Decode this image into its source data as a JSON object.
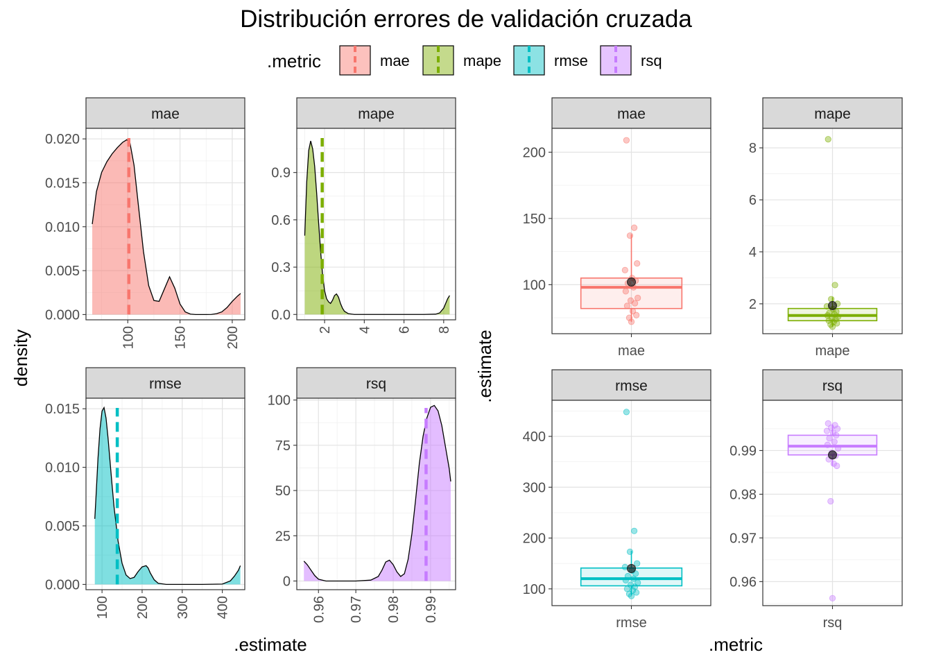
{
  "chart_data": {
    "title": "Distribución errores de validación cruzada",
    "legend": {
      "title": ".metric",
      "position": "top",
      "entries": [
        {
          "label": "mae",
          "color": "#F8766D"
        },
        {
          "label": "mape",
          "color": "#7CAE00"
        },
        {
          "label": "rmse",
          "color": "#00BFC4"
        },
        {
          "label": "rsq",
          "color": "#C77CFF"
        }
      ]
    },
    "colors": {
      "mae": "#F8766D",
      "mape": "#7CAE00",
      "rmse": "#00BFC4",
      "rsq": "#C77CFF"
    },
    "density_panels": {
      "type": "area",
      "xlabel": ".estimate",
      "ylabel": "density",
      "grid": true,
      "panels": [
        {
          "metric": "mae",
          "xlim": [
            60,
            212
          ],
          "ylim": [
            -0.0006,
            0.0212
          ],
          "xticks": [
            100,
            150,
            200
          ],
          "xtick_labels": [
            "100",
            "150",
            "200"
          ],
          "yticks": [
            0,
            0.005,
            0.01,
            0.015,
            0.02
          ],
          "ytick_labels": [
            "0.000",
            "0.005",
            "0.010",
            "0.015",
            "0.020"
          ],
          "mean": 101,
          "x": [
            66,
            70,
            75,
            80,
            85,
            90,
            95,
            99,
            102,
            106,
            110,
            115,
            120,
            125,
            130,
            135,
            140,
            145,
            150,
            155,
            160,
            165,
            170,
            175,
            180,
            185,
            190,
            195,
            200,
            205,
            208
          ],
          "y": [
            0.0103,
            0.014,
            0.0162,
            0.0174,
            0.0183,
            0.019,
            0.0196,
            0.0199,
            0.0196,
            0.017,
            0.0126,
            0.0072,
            0.0033,
            0.0016,
            0.0015,
            0.0029,
            0.0043,
            0.003,
            0.0012,
            0.0003,
            5e-05,
            0.0,
            0.0,
            0.0,
            1e-05,
            0.0001,
            0.0003,
            0.0008,
            0.0015,
            0.0021,
            0.0024
          ]
        },
        {
          "metric": "mape",
          "xlim": [
            0.6,
            8.6
          ],
          "ylim": [
            -0.034,
            1.18
          ],
          "xticks": [
            2,
            4,
            6,
            8
          ],
          "xtick_labels": [
            "2",
            "4",
            "6",
            "8"
          ],
          "yticks": [
            0,
            0.3,
            0.6,
            0.9
          ],
          "ytick_labels": [
            "0.0",
            "0.3",
            "0.6",
            "0.9"
          ],
          "mean": 1.88,
          "x": [
            1.0,
            1.1,
            1.2,
            1.3,
            1.4,
            1.5,
            1.6,
            1.7,
            1.8,
            1.9,
            2.0,
            2.1,
            2.2,
            2.3,
            2.4,
            2.5,
            2.6,
            2.7,
            2.8,
            2.9,
            3.0,
            3.2,
            3.5,
            4.0,
            5.0,
            6.0,
            7.0,
            7.6,
            7.8,
            8.0,
            8.1,
            8.2,
            8.3
          ],
          "y": [
            0.5,
            0.84,
            1.04,
            1.1,
            1.05,
            0.94,
            0.77,
            0.58,
            0.4,
            0.25,
            0.15,
            0.1,
            0.08,
            0.07,
            0.09,
            0.12,
            0.13,
            0.11,
            0.07,
            0.04,
            0.02,
            0.005,
            0.0,
            0.0,
            0.0,
            0.0,
            0.0,
            0.002,
            0.01,
            0.04,
            0.07,
            0.1,
            0.12
          ]
        },
        {
          "metric": "rmse",
          "xlim": [
            60,
            456
          ],
          "ylim": [
            -0.00045,
            0.0159
          ],
          "xticks": [
            100,
            200,
            300,
            400
          ],
          "xtick_labels": [
            "100",
            "200",
            "300",
            "400"
          ],
          "yticks": [
            0,
            0.005,
            0.01,
            0.015
          ],
          "ytick_labels": [
            "0.000",
            "0.005",
            "0.010",
            "0.015"
          ],
          "mean": 138,
          "x": [
            82,
            85,
            90,
            95,
            100,
            105,
            110,
            115,
            120,
            125,
            130,
            140,
            150,
            160,
            170,
            180,
            190,
            200,
            210,
            215,
            220,
            230,
            240,
            260,
            300,
            350,
            400,
            420,
            430,
            440,
            445
          ],
          "y": [
            0.0056,
            0.0075,
            0.0108,
            0.0133,
            0.0148,
            0.0151,
            0.0142,
            0.0125,
            0.0105,
            0.0085,
            0.0066,
            0.0037,
            0.0018,
            0.0008,
            0.0005,
            0.0006,
            0.0011,
            0.0015,
            0.0016,
            0.0014,
            0.001,
            0.0004,
            0.0001,
            0.0,
            0.0,
            0.0,
            3e-05,
            0.0003,
            0.0007,
            0.0012,
            0.0016
          ]
        },
        {
          "metric": "rsq",
          "xlim": [
            0.9542,
            0.9967
          ],
          "ylim": [
            -4.8,
            101
          ],
          "xticks": [
            0.96,
            0.97,
            0.98,
            0.99
          ],
          "xtick_labels": [
            "0.96",
            "0.97",
            "0.98",
            "0.99"
          ],
          "yticks": [
            0,
            25,
            50,
            75,
            100
          ],
          "ytick_labels": [
            "0",
            "25",
            "50",
            "75",
            "100"
          ],
          "mean": 0.9888,
          "x": [
            0.9561,
            0.957,
            0.958,
            0.959,
            0.96,
            0.962,
            0.965,
            0.97,
            0.974,
            0.976,
            0.977,
            0.978,
            0.979,
            0.98,
            0.981,
            0.982,
            0.983,
            0.984,
            0.985,
            0.986,
            0.987,
            0.988,
            0.989,
            0.99,
            0.991,
            0.992,
            0.993,
            0.994,
            0.995,
            0.9954
          ],
          "y": [
            11,
            9,
            6,
            3,
            1,
            0,
            0,
            0,
            0.5,
            2.5,
            6,
            10.5,
            11.5,
            9,
            5,
            2.5,
            4,
            12,
            26,
            45,
            65,
            80,
            90,
            96,
            97,
            94,
            86,
            74,
            62,
            55
          ]
        }
      ]
    },
    "box_panels": {
      "type": "box",
      "xlabel": ".metric",
      "ylabel": ".estimate",
      "grid": true,
      "panels": [
        {
          "metric": "mae",
          "ylim": [
            63,
            218
          ],
          "yticks": [
            100,
            150,
            200
          ],
          "ytick_labels": [
            "100",
            "150",
            "200"
          ],
          "box": {
            "q1": 82,
            "median": 98,
            "q3": 105,
            "whisker_low": 72,
            "whisker_high": 138
          },
          "mean": 102,
          "points": [
            209,
            143,
            137,
            116,
            111,
            105,
            103,
            101,
            98,
            95,
            90,
            88,
            86,
            84,
            80,
            77,
            75,
            72
          ]
        },
        {
          "metric": "mape",
          "ylim": [
            0.85,
            8.75
          ],
          "yticks": [
            2,
            4,
            6,
            8
          ],
          "ytick_labels": [
            "2",
            "4",
            "6",
            "8"
          ],
          "box": {
            "q1": 1.35,
            "median": 1.55,
            "q3": 1.82,
            "whisker_low": 1.12,
            "whisker_high": 2.25
          },
          "mean": 1.93,
          "points": [
            8.33,
            2.72,
            2.18,
            2.0,
            1.9,
            1.8,
            1.7,
            1.65,
            1.6,
            1.55,
            1.5,
            1.45,
            1.4,
            1.35,
            1.3,
            1.25,
            1.2,
            1.12
          ]
        },
        {
          "metric": "rmse",
          "ylim": [
            67,
            471
          ],
          "yticks": [
            100,
            200,
            300,
            400
          ],
          "ytick_labels": [
            "100",
            "200",
            "300",
            "400"
          ],
          "box": {
            "q1": 106,
            "median": 120,
            "q3": 141,
            "whisker_low": 88,
            "whisker_high": 175
          },
          "mean": 140,
          "points": [
            448,
            214,
            173,
            150,
            143,
            136,
            130,
            125,
            120,
            117,
            112,
            108,
            104,
            100,
            97,
            93,
            90,
            86
          ]
        },
        {
          "metric": "rsq",
          "ylim": [
            0.9545,
            1.0015
          ],
          "yticks": [
            0.96,
            0.97,
            0.98,
            0.99
          ],
          "ytick_labels": [
            "0.96",
            "0.97",
            "0.98",
            "0.99"
          ],
          "box": {
            "q1": 0.989,
            "median": 0.991,
            "q3": 0.9935,
            "whisker_low": 0.9865,
            "whisker_high": 0.996
          },
          "mean": 0.989,
          "points": [
            0.9962,
            0.9958,
            0.9952,
            0.995,
            0.9945,
            0.994,
            0.9935,
            0.9928,
            0.992,
            0.9913,
            0.9905,
            0.9895,
            0.9888,
            0.988,
            0.987,
            0.9865,
            0.9784,
            0.9562
          ]
        }
      ]
    }
  }
}
